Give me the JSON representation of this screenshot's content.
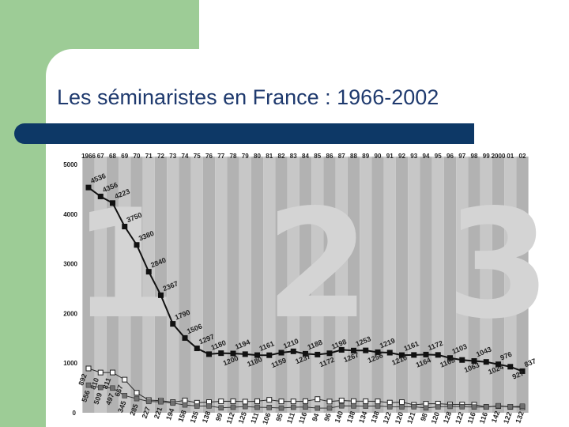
{
  "slide": {
    "title": "Les séminaristes en France : 1966-2002",
    "colors": {
      "green": "#9dcc96",
      "title_text": "#1f3a6e",
      "bar": "#0d3866"
    }
  },
  "chart_data": {
    "type": "line",
    "title": "",
    "xlabel": "",
    "ylabel": "",
    "ylim": [
      0,
      5000
    ],
    "yticks": [
      0,
      1000,
      2000,
      3000,
      4000,
      5000
    ],
    "categories": [
      "1966",
      "67",
      "68",
      "69",
      "70",
      "71",
      "72",
      "73",
      "74",
      "75",
      "76",
      "77",
      "78",
      "79",
      "80",
      "81",
      "82",
      "83",
      "84",
      "85",
      "86",
      "87",
      "88",
      "89",
      "90",
      "91",
      "92",
      "93",
      "94",
      "95",
      "96",
      "97",
      "98",
      "99",
      "2000",
      "01",
      "02"
    ],
    "grid": "vertical alternating gray bands",
    "background_numerals": [
      "1",
      "2",
      "3"
    ],
    "series": [
      {
        "marker": "filled-square",
        "labeled_values": [
          4536,
          4356,
          4223,
          3750,
          3380,
          2840,
          2367,
          1790,
          1506,
          1297,
          1180,
          1200,
          1194,
          1180,
          1161,
          1159,
          1210,
          1237,
          1188,
          1172,
          1198,
          1267,
          1253,
          1256,
          1219,
          1210,
          1161,
          1164,
          1172,
          1165,
          1103,
          1063,
          1043,
          1024,
          976,
          927,
          837
        ],
        "values": [
          4536,
          4356,
          4223,
          3750,
          3380,
          2840,
          2367,
          1790,
          1506,
          1297,
          1180,
          1200,
          1194,
          1180,
          1161,
          1159,
          1210,
          1237,
          1188,
          1172,
          1198,
          1267,
          1253,
          1256,
          1219,
          1210,
          1161,
          1164,
          1172,
          1165,
          1103,
          1063,
          1043,
          1024,
          976,
          927,
          837
        ]
      },
      {
        "marker": "open-square",
        "labeled_values": [
          892,
          810,
          811,
          667
        ],
        "values": [
          892,
          810,
          811,
          667,
          402,
          255,
          243,
          214,
          248,
          202,
          215,
          230,
          232,
          224,
          232,
          260,
          229,
          229,
          233,
          275,
          226,
          247,
          234,
          232,
          230,
          204,
          214,
          160,
          181,
          184,
          168,
          166,
          163,
          118,
          134,
          118,
          112
        ]
      },
      {
        "marker": "gray-square",
        "labeled_values": [
          556,
          509,
          497,
          345,
          285,
          227,
          221,
          194,
          158,
          135,
          138,
          99,
          112,
          125,
          111,
          106,
          95,
          111,
          116,
          94,
          96,
          140,
          138,
          134,
          138,
          122,
          120,
          121,
          98,
          120,
          128,
          122,
          116,
          116,
          142,
          122,
          132
        ],
        "values": [
          556,
          509,
          497,
          345,
          285,
          227,
          221,
          194,
          158,
          135,
          138,
          99,
          112,
          125,
          111,
          106,
          95,
          111,
          116,
          94,
          96,
          140,
          138,
          134,
          138,
          122,
          120,
          121,
          98,
          120,
          128,
          122,
          116,
          116,
          142,
          122,
          132
        ]
      }
    ]
  }
}
